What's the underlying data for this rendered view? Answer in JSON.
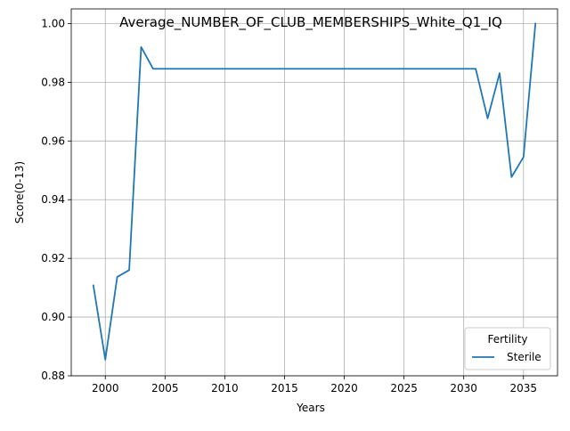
{
  "chart_data": {
    "type": "line",
    "title": "Average_NUMBER_OF_CLUB_MEMBERSHIPS_White_Q1_IQ",
    "xlabel": "Years",
    "ylabel": "Score(0-13)",
    "xlim": [
      1997.15,
      2037.85
    ],
    "ylim": [
      0.88,
      1.005
    ],
    "xticks": [
      2000,
      2005,
      2010,
      2015,
      2020,
      2025,
      2030,
      2035
    ],
    "xtick_labels": [
      "2000",
      "2005",
      "2010",
      "2015",
      "2020",
      "2025",
      "2030",
      "2035"
    ],
    "yticks": [
      0.88,
      0.9,
      0.92,
      0.94,
      0.96,
      0.98,
      1.0
    ],
    "ytick_labels": [
      "0.88",
      "0.90",
      "0.92",
      "0.94",
      "0.96",
      "0.98",
      "1.00"
    ],
    "grid": true,
    "legend": {
      "title": "Fertility",
      "position": "lower-right"
    },
    "series": [
      {
        "name": "Sterile",
        "color": "#1f77b4",
        "x": [
          1999,
          2000,
          2001,
          2002,
          2003,
          2004,
          2005,
          2006,
          2007,
          2008,
          2009,
          2010,
          2011,
          2012,
          2013,
          2014,
          2015,
          2016,
          2017,
          2018,
          2019,
          2020,
          2021,
          2022,
          2023,
          2024,
          2025,
          2026,
          2027,
          2028,
          2029,
          2030,
          2031,
          2032,
          2033,
          2034,
          2035,
          2036
        ],
        "y": [
          0.9108,
          0.8855,
          0.9137,
          0.916,
          0.992,
          0.9846,
          0.9846,
          0.9846,
          0.9846,
          0.9846,
          0.9846,
          0.9846,
          0.9846,
          0.9846,
          0.9846,
          0.9846,
          0.9846,
          0.9846,
          0.9846,
          0.9846,
          0.9846,
          0.9846,
          0.9846,
          0.9846,
          0.9846,
          0.9846,
          0.9846,
          0.9846,
          0.9846,
          0.9846,
          0.9846,
          0.9846,
          0.9846,
          0.9677,
          0.9831,
          0.9477,
          0.9545,
          1.0
        ]
      }
    ]
  }
}
